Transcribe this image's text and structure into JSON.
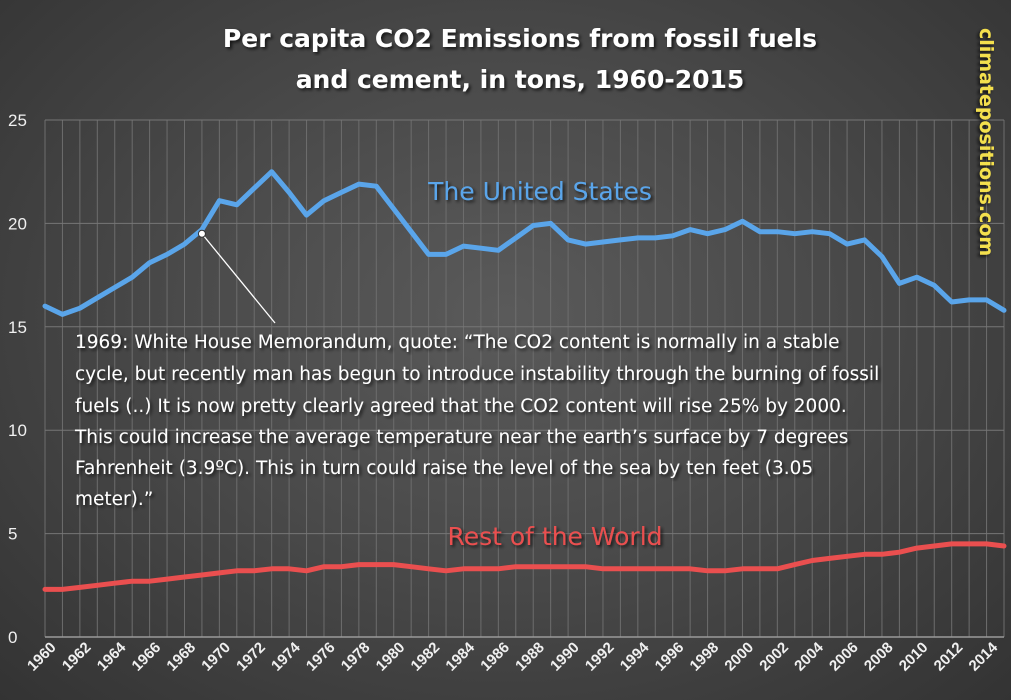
{
  "watermark": "climatepositions.com",
  "chart_data": {
    "type": "line",
    "title_lines": [
      "Per capita CO2 Emissions from fossil fuels",
      "and cement, in tons, 1960-2015"
    ],
    "xlabel": "",
    "ylabel": "",
    "ylim": [
      0,
      25
    ],
    "yticks": [
      0,
      5,
      10,
      15,
      20,
      25
    ],
    "xlim": [
      1960,
      2015
    ],
    "xticks": [
      1960,
      1962,
      1964,
      1966,
      1968,
      1970,
      1972,
      1974,
      1976,
      1978,
      1980,
      1982,
      1984,
      1986,
      1988,
      1990,
      1992,
      1994,
      1996,
      1998,
      2000,
      2002,
      2004,
      2006,
      2008,
      2010,
      2012,
      2014
    ],
    "grid": true,
    "x": [
      1960,
      1961,
      1962,
      1963,
      1964,
      1965,
      1966,
      1967,
      1968,
      1969,
      1970,
      1971,
      1972,
      1973,
      1974,
      1975,
      1976,
      1977,
      1978,
      1979,
      1980,
      1981,
      1982,
      1983,
      1984,
      1985,
      1986,
      1987,
      1988,
      1989,
      1990,
      1991,
      1992,
      1993,
      1994,
      1995,
      1996,
      1997,
      1998,
      1999,
      2000,
      2001,
      2002,
      2003,
      2004,
      2005,
      2006,
      2007,
      2008,
      2009,
      2010,
      2011,
      2012,
      2013,
      2014,
      2015
    ],
    "series": [
      {
        "name": "The United States",
        "color": "#5aa5ea",
        "values": [
          16.0,
          15.6,
          15.9,
          16.4,
          16.9,
          17.4,
          18.1,
          18.5,
          19.0,
          19.7,
          21.1,
          20.9,
          21.7,
          22.5,
          21.5,
          20.4,
          21.1,
          21.5,
          21.9,
          21.8,
          20.7,
          19.6,
          18.5,
          18.5,
          18.9,
          18.8,
          18.7,
          19.3,
          19.9,
          20.0,
          19.2,
          19.0,
          19.1,
          19.2,
          19.3,
          19.3,
          19.4,
          19.7,
          19.5,
          19.7,
          20.1,
          19.6,
          19.6,
          19.5,
          19.6,
          19.5,
          19.0,
          19.2,
          18.4,
          17.1,
          17.4,
          17.0,
          16.2,
          16.3,
          16.3,
          15.8
        ]
      },
      {
        "name": "Rest of the World",
        "color": "#ea4f4f",
        "values": [
          2.3,
          2.3,
          2.4,
          2.5,
          2.6,
          2.7,
          2.7,
          2.8,
          2.9,
          3.0,
          3.1,
          3.2,
          3.2,
          3.3,
          3.3,
          3.2,
          3.4,
          3.4,
          3.5,
          3.5,
          3.5,
          3.4,
          3.3,
          3.2,
          3.3,
          3.3,
          3.3,
          3.4,
          3.4,
          3.4,
          3.4,
          3.4,
          3.3,
          3.3,
          3.3,
          3.3,
          3.3,
          3.3,
          3.2,
          3.2,
          3.3,
          3.3,
          3.3,
          3.5,
          3.7,
          3.8,
          3.9,
          4.0,
          4.0,
          4.1,
          4.3,
          4.4,
          4.5,
          4.5,
          4.5,
          4.4
        ]
      }
    ],
    "annotation": {
      "year": 1969,
      "value": 19.5,
      "lines": [
        "1969: White House Memorandum, quote: “The CO2 content is normally in a stable",
        "cycle, but recently man has begun to introduce instability through the burning of fossil",
        "fuels (..) It is now pretty clearly agreed that the CO2 content will rise 25% by 2000.",
        "This could increase the average temperature near the earth’s surface by 7 degrees",
        "Fahrenheit (3.9ºC). This in turn could raise the level of the sea by ten feet (3.05",
        "meter).”"
      ]
    }
  }
}
